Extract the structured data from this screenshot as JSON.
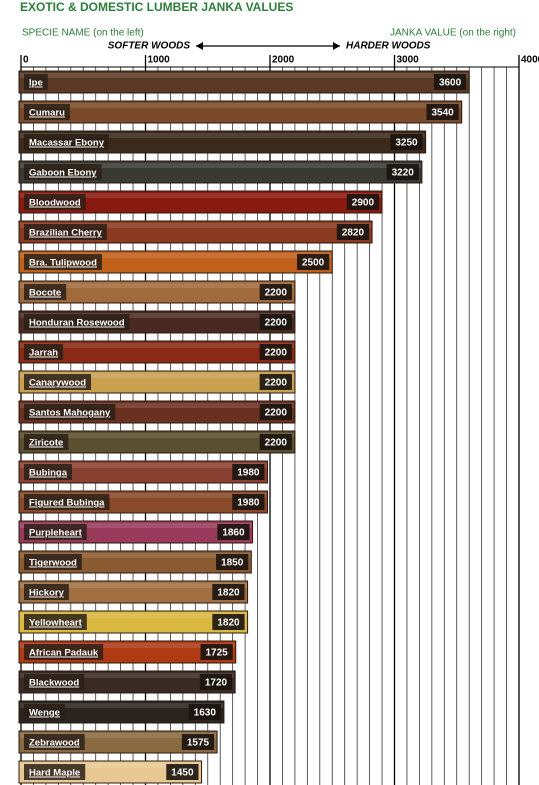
{
  "chart_data": {
    "type": "hbar",
    "title": "EXOTIC & DOMESTIC LUMBER JANKA VALUES",
    "subtitle_left": "SPECIE NAME (on the left)",
    "subtitle_right": "JANKA VALUE (on the right)",
    "annotation_left": "SOFTER WOODS",
    "annotation_right": "HARDER WOODS",
    "categories": [
      "Ipe",
      "Cumaru",
      "Macassar Ebony",
      "Gaboon Ebony",
      "Bloodwood",
      "Brazilian Cherry",
      "Bra. Tulipwood",
      "Bocote",
      "Honduran Rosewood",
      "Jarrah",
      "Canarywood",
      "Santos Mahogany",
      "Ziricote",
      "Bubinga",
      "Figured Bubinga",
      "Purpleheart",
      "Tigerwood",
      "Hickory",
      "Yellowheart",
      "African Padauk",
      "Blackwood",
      "Wenge",
      "Zebrawood",
      "Hard Maple"
    ],
    "values": [
      3600,
      3540,
      3250,
      3220,
      2900,
      2820,
      2500,
      2200,
      2200,
      2200,
      2200,
      2200,
      2200,
      1980,
      1980,
      1860,
      1850,
      1820,
      1820,
      1725,
      1720,
      1630,
      1575,
      1450
    ],
    "colors": [
      "#5a3a24",
      "#7a4a2a",
      "#3c2a1a",
      "#3a3a34",
      "#8a1a10",
      "#8a3a1e",
      "#c0601a",
      "#a06a3a",
      "#4a2a20",
      "#8a2a14",
      "#c8a050",
      "#6a3020",
      "#5a5030",
      "#8a4030",
      "#8a4a2a",
      "#9a3a5a",
      "#8a5a30",
      "#a07040",
      "#d8b840",
      "#b03a14",
      "#3a2a24",
      "#2a2420",
      "#8a6a40",
      "#e8c890"
    ],
    "xlim": [
      0,
      4000
    ],
    "xticks": [
      0,
      1000,
      2000,
      3000,
      4000
    ],
    "minor_grid_step": 100,
    "grid": true
  }
}
